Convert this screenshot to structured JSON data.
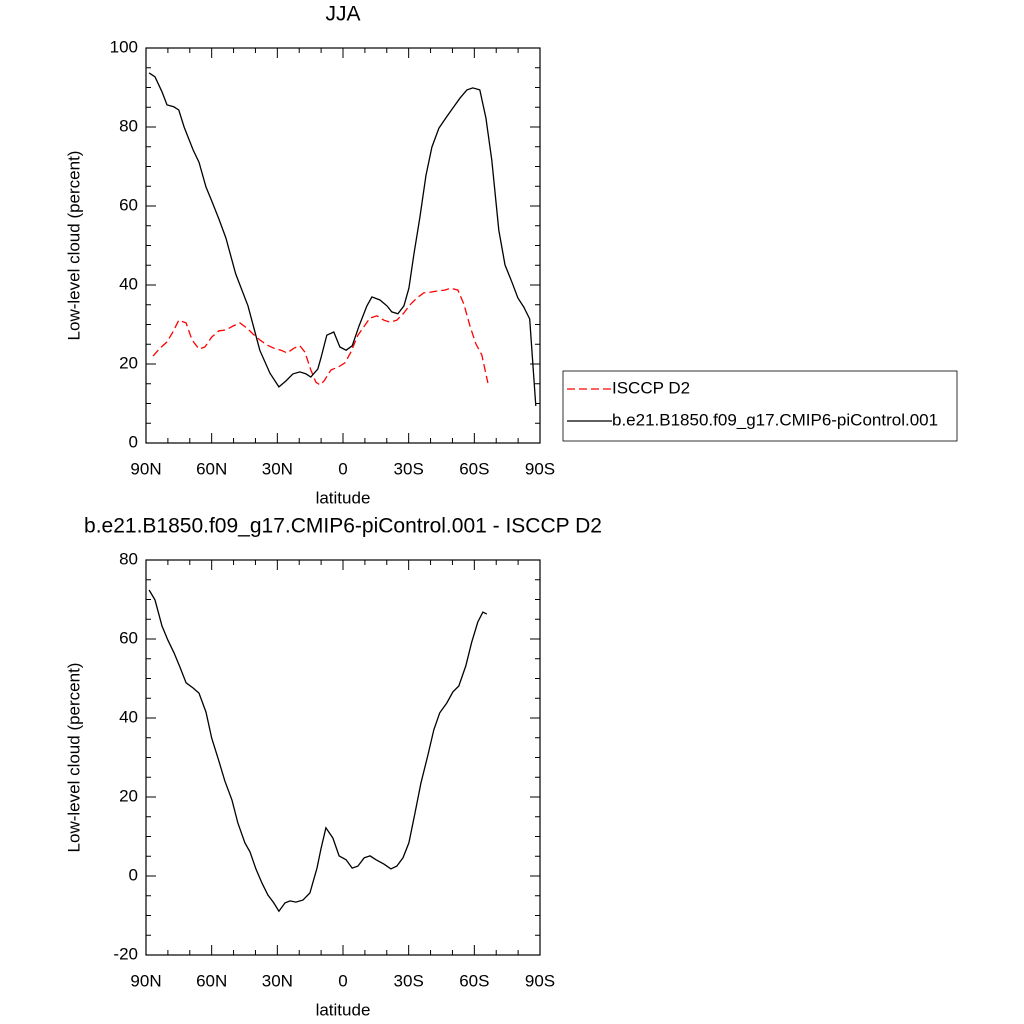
{
  "chart_data": [
    {
      "type": "line",
      "title": "JJA",
      "xlabel": "latitude",
      "ylabel": "Low-level cloud (percent)",
      "xlim": [
        90,
        -90
      ],
      "xticks": [
        {
          "value": 90,
          "label": "90N"
        },
        {
          "value": 60,
          "label": "60N"
        },
        {
          "value": 30,
          "label": "30N"
        },
        0,
        {
          "value": -30,
          "label": "30S"
        },
        {
          "value": -60,
          "label": "60S"
        },
        {
          "value": -90,
          "label": "90S"
        }
      ],
      "ylim": [
        0,
        100
      ],
      "yticks": [
        0,
        20,
        40,
        60,
        80,
        100
      ],
      "legend": "right",
      "series": [
        {
          "name": "ISCCP D2",
          "color": "#ff0000",
          "dashed": true,
          "x": [
            86.8,
            83.6,
            80.4,
            77.7,
            75,
            71.7,
            69,
            65.8,
            63.1,
            60,
            56.7,
            53.5,
            50.3,
            47.1,
            43.9,
            41.1,
            38,
            34.7,
            31.6,
            28.4,
            25.6,
            22.4,
            19.7,
            17.4,
            14.7,
            12.4,
            10.5,
            8.7,
            5.5,
            2.3,
            -0.9,
            -3.6,
            -6.8,
            -9.5,
            -12.3,
            -15.5,
            -18.7,
            -21.4,
            -24.6,
            -27.8,
            -30.5,
            -33.7,
            -36.9,
            -40.1,
            -43.3,
            -46.5,
            -49.3,
            -52.5,
            -55.2,
            -58,
            -60.7,
            -63.4,
            -66.2
          ],
          "values": [
            22,
            24,
            25.6,
            28.1,
            31.1,
            30.4,
            26.1,
            23.8,
            24.3,
            26.8,
            28.4,
            28.6,
            29.6,
            30.4,
            29.1,
            27.6,
            26.1,
            24.8,
            24,
            23.5,
            22.8,
            24,
            24.6,
            23,
            18.5,
            15.4,
            14.7,
            15.7,
            18.5,
            19.2,
            20.3,
            23,
            27.3,
            29.4,
            31.6,
            32.2,
            31.1,
            30.6,
            31.1,
            32.9,
            34.9,
            36.7,
            38,
            38.2,
            38.5,
            38.7,
            39.2,
            38.7,
            35.2,
            29.6,
            25.1,
            22.3,
            15.2
          ]
        },
        {
          "name": "b.e21.B1850.f09_g17.CMIP6-piControl.001",
          "color": "#000000",
          "dashed": false,
          "x": [
            88.6,
            85.9,
            82.7,
            80.4,
            77.2,
            75,
            72.6,
            68.5,
            65.8,
            62.6,
            60,
            56.7,
            53.5,
            49,
            43.4,
            38,
            33.4,
            29.3,
            26.1,
            22.9,
            19.7,
            16.9,
            14.7,
            11.5,
            10.1,
            7.4,
            4.2,
            1.4,
            -1.4,
            -4.2,
            -7.3,
            -10.9,
            -13.2,
            -16.9,
            -20.1,
            -22.3,
            -25.1,
            -27.8,
            -30.1,
            -32.4,
            -35.1,
            -37.9,
            -40.6,
            -43.8,
            -47,
            -50.2,
            -53.4,
            -56.6,
            -59.3,
            -62.5,
            -65.3,
            -68,
            -71.2,
            -74,
            -77.1,
            -79.9,
            -82.6,
            -85.3,
            -88.1
          ],
          "values": [
            93.7,
            92.7,
            88.9,
            85.6,
            85.1,
            84.3,
            80,
            74.2,
            71.1,
            64.8,
            61.3,
            56.7,
            51.9,
            42.8,
            34.7,
            23.5,
            17.7,
            14.2,
            15.7,
            17.5,
            18,
            17.5,
            16.7,
            18.7,
            21.5,
            27.3,
            28.1,
            24.3,
            23.5,
            24.6,
            29.6,
            34.7,
            37,
            36.2,
            34.7,
            33.2,
            32.7,
            34.7,
            39.2,
            47.8,
            57,
            67.8,
            74.9,
            79.7,
            82.3,
            84.8,
            87.3,
            89.4,
            89.9,
            89.4,
            82.3,
            71.6,
            53.9,
            45.1,
            40.8,
            36.7,
            34.4,
            31.4,
            9.4
          ]
        }
      ]
    },
    {
      "type": "line",
      "title": "b.e21.B1850.f09_g17.CMIP6-piControl.001 - ISCCP D2",
      "xlabel": "latitude",
      "ylabel": "Low-level cloud (percent)",
      "xlim": [
        90,
        -90
      ],
      "xticks": [
        {
          "value": 90,
          "label": "90N"
        },
        {
          "value": 60,
          "label": "60N"
        },
        {
          "value": 30,
          "label": "30N"
        },
        0,
        {
          "value": -30,
          "label": "30S"
        },
        {
          "value": -60,
          "label": "60S"
        },
        {
          "value": -90,
          "label": "90S"
        }
      ],
      "ylim": [
        -20,
        80
      ],
      "yticks": [
        -20,
        0,
        20,
        40,
        60,
        80
      ],
      "color": "#000000",
      "x": [
        88.6,
        85.9,
        82.7,
        80,
        77.2,
        74.5,
        71.7,
        68.5,
        65.8,
        62.6,
        60,
        56.7,
        54,
        50.7,
        48,
        44.8,
        42.5,
        39.8,
        37,
        34.3,
        31.6,
        29.3,
        26.5,
        24.2,
        21.5,
        18.3,
        15.1,
        11.9,
        10.1,
        7.8,
        4.6,
        1.8,
        -1.4,
        -4.2,
        -6.8,
        -9.7,
        -12.4,
        -15.1,
        -18.7,
        -21.9,
        -24.6,
        -27.4,
        -30.1,
        -32.8,
        -35.6,
        -38.8,
        -41.5,
        -44.2,
        -47.4,
        -50.2,
        -52.9,
        -56.1,
        -58.8,
        -61.6,
        -63.9,
        -65.7
      ],
      "values": [
        72.4,
        69.9,
        63.3,
        59.7,
        56.5,
        52.9,
        48.9,
        47.6,
        46.3,
        41.5,
        34.9,
        29.1,
        24.1,
        19.2,
        13.4,
        8.4,
        6.1,
        1.8,
        -1.8,
        -4.8,
        -6.8,
        -8.9,
        -6.8,
        -6.3,
        -6.6,
        -6.1,
        -4.3,
        2,
        6.8,
        12.2,
        9.6,
        5.1,
        4.1,
        2,
        2.5,
        4.6,
        5.1,
        4.1,
        3,
        1.8,
        2.5,
        4.6,
        8.4,
        15.7,
        23.5,
        30.6,
        37,
        41.3,
        43.8,
        46.6,
        48.1,
        53.2,
        59.2,
        64.3,
        66.8,
        66.3
      ]
    }
  ]
}
